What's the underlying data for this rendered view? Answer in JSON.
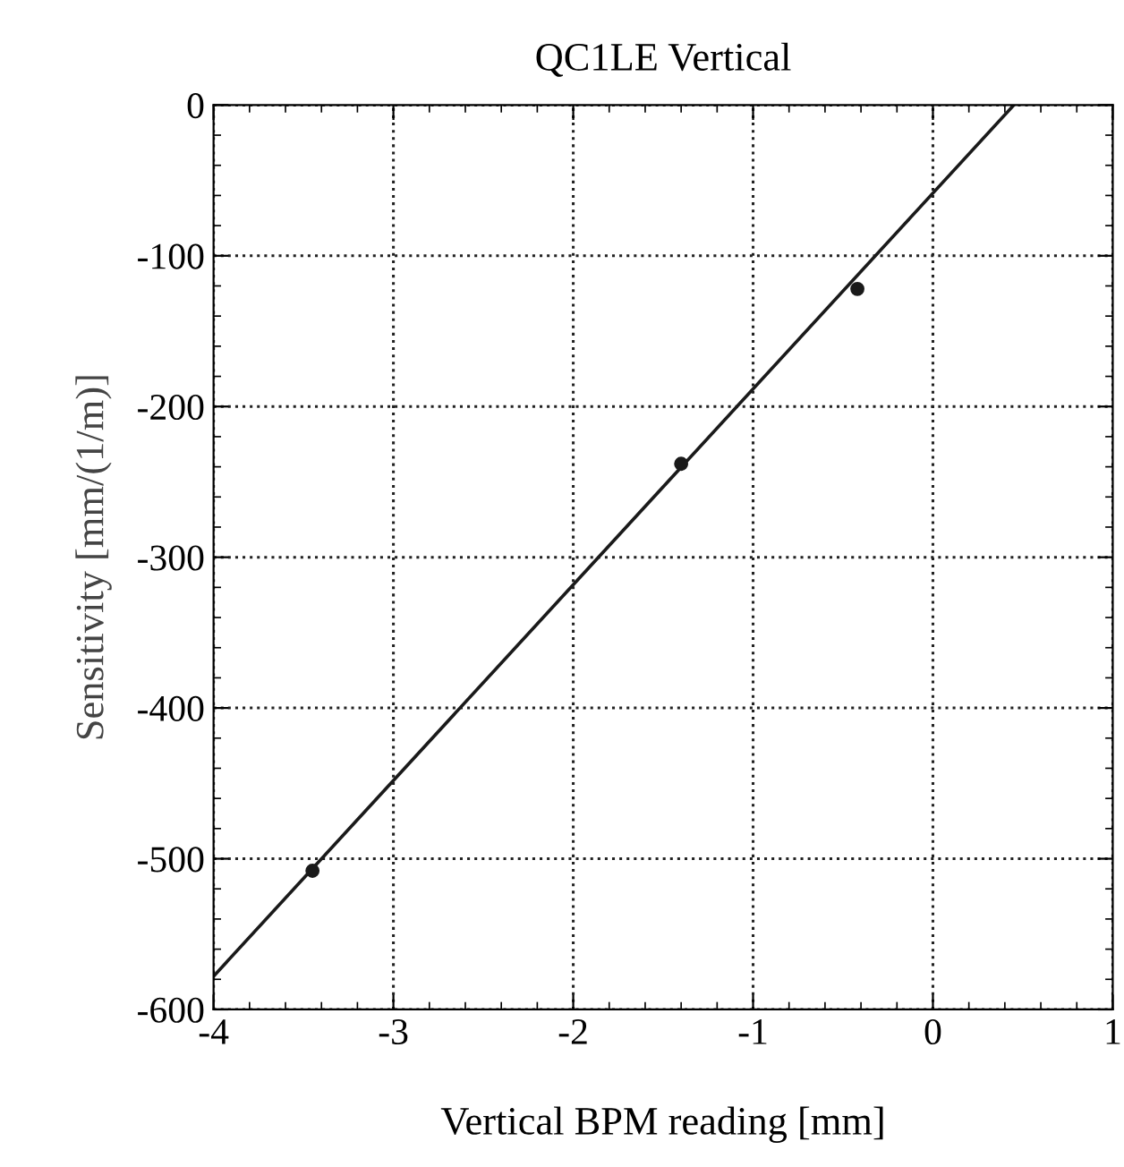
{
  "chart_data": {
    "type": "scatter",
    "title": "QC1LE Vertical",
    "xlabel": "Vertical BPM reading [mm]",
    "ylabel": "Sensitivity [mm/(1/m)]",
    "x": [
      -3.45,
      -1.4,
      -0.42
    ],
    "series": [
      {
        "color": "#1a1a1a",
        "values": [
          -508,
          -238,
          -122
        ],
        "marker": "circle"
      },
      {
        "type": "line",
        "color": "#1a1a1a",
        "x": [
          -4,
          0.45
        ],
        "values": [
          -578,
          0
        ],
        "line_style": "solid",
        "marker": "none"
      }
    ],
    "xlim": [
      -4,
      1
    ],
    "ylim": [
      -600,
      0
    ],
    "xticks": [
      -4,
      -3,
      -2,
      -1,
      0,
      1
    ],
    "yticks": [
      -600,
      -500,
      -400,
      -300,
      -200,
      -100,
      0
    ],
    "grid": true
  }
}
